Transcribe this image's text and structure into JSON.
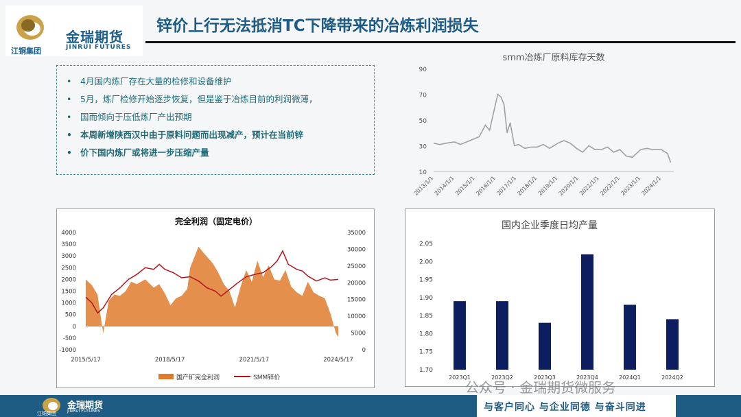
{
  "header": {
    "logo_cn": "金瑞期货",
    "logo_en": "JINRUI FUTURES",
    "logo_group": "江铜集团",
    "title": "锌价上行无法抵消TC下降带来的冶炼利润损失"
  },
  "bullets": [
    {
      "text": "4月国内炼厂存在大量的检修和设备维护",
      "bold": false
    },
    {
      "text": "5月，炼厂检修开始逐步恢复，但是鉴于冶炼目前的利润微薄，",
      "bold": false
    },
    {
      "text": "国而倾向于压低炼厂产出预期",
      "bold": false
    },
    {
      "text": "本周新增陕西汉中由于原料问题而出现减产，预计在当前锌",
      "bold": true
    },
    {
      "text": "价下国内炼厂或将进一步压缩产量",
      "bold": true
    }
  ],
  "colors": {
    "accent": "#1e5c86",
    "profit_fill": "#e07b2e",
    "price_line": "#b3141c",
    "bar": "#0d1e60",
    "line_grey": "#a0a0a0"
  },
  "chart_data": [
    {
      "type": "line",
      "title": "smm冶炼厂原料库存天数",
      "x_ticks": [
        "2013/1/1",
        "2014/1/1",
        "2015/1/1",
        "2016/1/1",
        "2017/1/1",
        "2018/1/1",
        "2019/1/1",
        "2020/1/1",
        "2021/1/1",
        "2022/1/1",
        "2023/1/1",
        "2024/1/1"
      ],
      "y_ticks": [
        "90",
        "70",
        "50",
        "30",
        "10"
      ],
      "ylim": [
        10,
        90
      ],
      "series": [
        {
          "x": [
            2013.0,
            2013.3,
            2013.6,
            2014.0,
            2014.3,
            2014.6,
            2014.9,
            2015.2,
            2015.5,
            2015.7,
            2015.9,
            2016.1,
            2016.25,
            2016.4,
            2016.55,
            2016.7,
            2016.9,
            2017.1,
            2017.4,
            2017.7,
            2018.0,
            2018.3,
            2018.6,
            2019.0,
            2019.3,
            2019.6,
            2019.9,
            2020.2,
            2020.5,
            2020.8,
            2021.1,
            2021.4,
            2021.7,
            2022.0,
            2022.3,
            2022.6,
            2023.0,
            2023.3,
            2023.6,
            2024.0,
            2024.3,
            2024.45
          ],
          "y": [
            32,
            31,
            32,
            33,
            31,
            33,
            35,
            37,
            46,
            42,
            56,
            70,
            68,
            62,
            40,
            48,
            30,
            31,
            28,
            29,
            29,
            31,
            28,
            32,
            34,
            32,
            28,
            25,
            30,
            27,
            27,
            29,
            25,
            27,
            22,
            21,
            27,
            28,
            27,
            27,
            24,
            17
          ]
        }
      ]
    },
    {
      "type": "area",
      "title": "完全利润（固定电价）",
      "x_ticks": [
        "2015/5/17",
        "2018/5/17",
        "2021/5/17",
        "2024/5/17"
      ],
      "y_left_ticks": [
        "4000",
        "3500",
        "3000",
        "2500",
        "2000",
        "1500",
        "1000",
        "500",
        "0",
        "-500",
        "-1000"
      ],
      "y_right_ticks": [
        "35000",
        "30000",
        "25000",
        "20000",
        "15000",
        "10000",
        "5000",
        "0"
      ],
      "ylim_left": [
        -1000,
        4000
      ],
      "ylim_right": [
        0,
        35000
      ],
      "series": [
        {
          "name": "国产矿完全利润",
          "axis": "left",
          "x": [
            2015.38,
            2015.6,
            2015.8,
            2016.0,
            2016.2,
            2016.4,
            2016.6,
            2016.8,
            2017.0,
            2017.2,
            2017.5,
            2017.8,
            2018.0,
            2018.2,
            2018.4,
            2018.6,
            2018.8,
            2019.0,
            2019.1,
            2019.4,
            2019.6,
            2019.9,
            2020.1,
            2020.3,
            2020.5,
            2020.7,
            2020.9,
            2021.1,
            2021.3,
            2021.5,
            2021.7,
            2021.9,
            2022.1,
            2022.3,
            2022.5,
            2022.7,
            2022.9,
            2023.1,
            2023.3,
            2023.5,
            2023.7,
            2023.9,
            2024.1,
            2024.3,
            2024.38
          ],
          "y": [
            2000,
            1750,
            1350,
            -300,
            1100,
            1350,
            1300,
            1500,
            1900,
            1800,
            2000,
            1650,
            1800,
            1400,
            900,
            1200,
            1300,
            1600,
            2500,
            3400,
            3100,
            2700,
            2300,
            1800,
            1500,
            800,
            1700,
            2400,
            1900,
            2800,
            2100,
            2600,
            2000,
            1950,
            2400,
            1700,
            1450,
            1300,
            1900,
            1450,
            1300,
            1200,
            550,
            -300,
            -450
          ]
        },
        {
          "name": "SMM锌价",
          "axis": "right",
          "x": [
            2015.38,
            2015.6,
            2015.8,
            2016.0,
            2016.3,
            2016.6,
            2016.9,
            2017.2,
            2017.5,
            2017.8,
            2018.0,
            2018.2,
            2018.5,
            2018.8,
            2019.1,
            2019.4,
            2019.7,
            2020.0,
            2020.2,
            2020.5,
            2020.8,
            2021.1,
            2021.4,
            2021.7,
            2022.0,
            2022.2,
            2022.4,
            2022.6,
            2022.9,
            2023.1,
            2023.3,
            2023.6,
            2023.9,
            2024.1,
            2024.38
          ],
          "y": [
            15700,
            14000,
            11000,
            12500,
            16500,
            18500,
            21000,
            22500,
            24500,
            24000,
            25500,
            24000,
            23000,
            21500,
            21800,
            20500,
            18500,
            17500,
            16000,
            18000,
            20000,
            21800,
            22500,
            23000,
            24800,
            26500,
            29500,
            25500,
            24000,
            23500,
            22000,
            20500,
            21500,
            20800,
            21000
          ]
        }
      ]
    },
    {
      "type": "bar",
      "title": "国内企业季度日均产量",
      "categories": [
        "2023Q1",
        "2023Q2",
        "2023Q3",
        "2023Q4",
        "2024Q1",
        "2024Q2"
      ],
      "values": [
        1.89,
        1.89,
        1.83,
        2.02,
        1.88,
        1.84
      ],
      "y_ticks": [
        "2.05",
        "2.00",
        "1.95",
        "1.90",
        "1.85",
        "1.80",
        "1.75",
        "1.70"
      ],
      "ylim": [
        1.7,
        2.05
      ]
    }
  ],
  "footer": {
    "slogan": "与客户同心  与企业同德  与奋斗同进",
    "watermark": "公众号 · 金瑞期货微服务",
    "logo_cn": "金瑞期货",
    "logo_en": "JINRUI FUTURES",
    "logo_group": "江铜集团"
  }
}
